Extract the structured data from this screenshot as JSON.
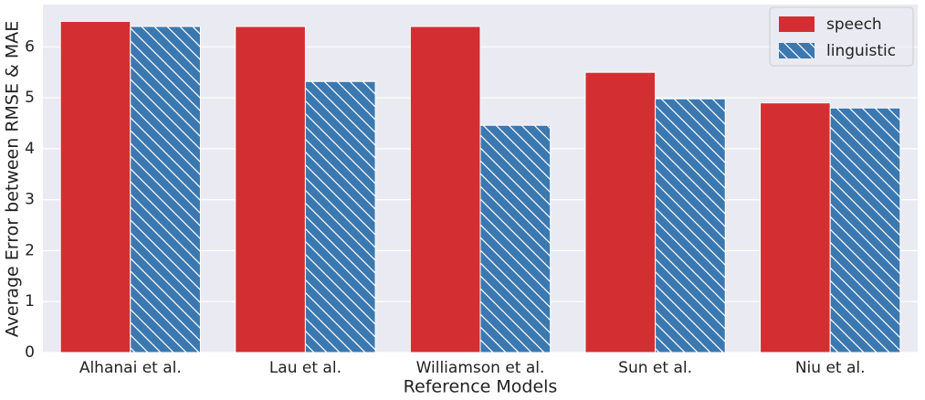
{
  "chart_data": {
    "type": "bar",
    "x_label": "Reference Models",
    "y_label": "Average Error between RMSE & MAE",
    "categories": [
      "Alhanai et al.",
      "Lau et al.",
      "Williamson et al.",
      "Sun et al.",
      "Niu et al."
    ],
    "series": [
      {
        "name": "speech",
        "color": "#d32f32",
        "values": [
          6.5,
          6.4,
          6.4,
          5.5,
          4.9
        ]
      },
      {
        "name": "linguistic",
        "color": "#3b78b0",
        "hatch": "\\",
        "values": [
          6.4,
          5.32,
          4.46,
          4.98,
          4.8
        ]
      }
    ],
    "ylim": [
      0,
      6.83
    ],
    "yticks": [
      0,
      1,
      2,
      3,
      4,
      5,
      6
    ],
    "grid": true,
    "legend": "upper right",
    "background": "#eaeaf2"
  }
}
